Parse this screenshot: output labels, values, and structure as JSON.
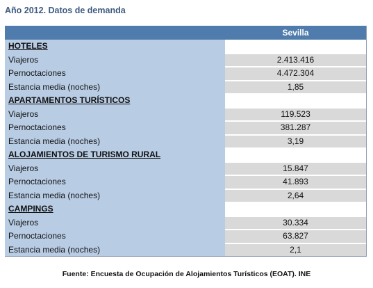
{
  "title": "Año 2012. Datos de demanda",
  "header": {
    "city": "Sevilla"
  },
  "rows": [
    {
      "type": "section",
      "label": "HOTELES",
      "value": ""
    },
    {
      "type": "data",
      "label": "Viajeros",
      "value": "2.413.416"
    },
    {
      "type": "data",
      "label": "Pernoctaciones",
      "value": "4.472.304"
    },
    {
      "type": "data",
      "label": "Estancia media (noches)",
      "value": "1,85"
    },
    {
      "type": "section",
      "label": "APARTAMENTOS TURÍSTICOS",
      "value": ""
    },
    {
      "type": "data",
      "label": "Viajeros",
      "value": "119.523"
    },
    {
      "type": "data",
      "label": "Pernoctaciones",
      "value": "381.287"
    },
    {
      "type": "data",
      "label": "Estancia media (noches)",
      "value": "3,19"
    },
    {
      "type": "section",
      "label": "ALOJAMIENTOS DE TURISMO RURAL",
      "value": ""
    },
    {
      "type": "data",
      "label": "Viajeros",
      "value": "15.847"
    },
    {
      "type": "data",
      "label": "Pernoctaciones",
      "value": "41.893"
    },
    {
      "type": "data",
      "label": "Estancia media (noches)",
      "value": "2,64"
    },
    {
      "type": "section",
      "label": "CAMPINGS",
      "value": ""
    },
    {
      "type": "data",
      "label": "Viajeros",
      "value": "30.334"
    },
    {
      "type": "data",
      "label": "Pernoctaciones",
      "value": "63.827"
    },
    {
      "type": "data",
      "label": "Estancia media (noches)",
      "value": "2,1"
    }
  ],
  "source": "Fuente: Encuesta de Ocupación de Alojamientos Turísticos (EOAT). INE"
}
